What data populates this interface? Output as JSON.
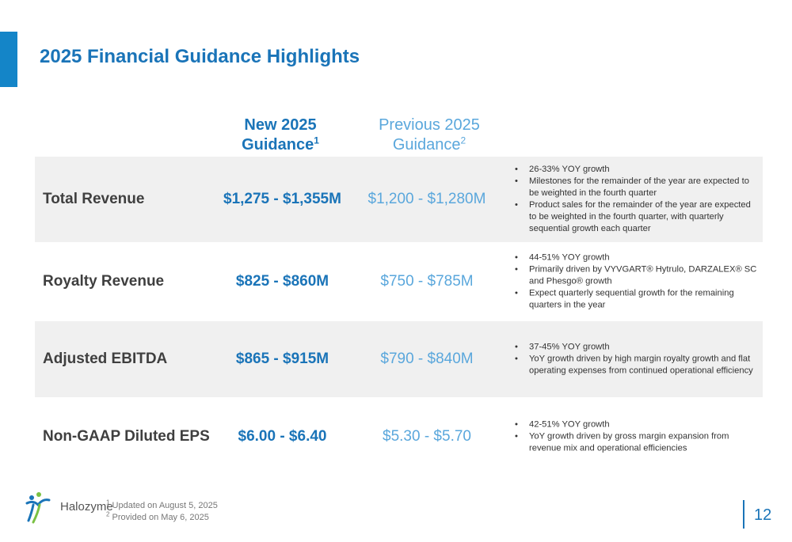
{
  "title": "2025 Financial Guidance Highlights",
  "columns": {
    "new": {
      "label": "New 2025",
      "label2": "Guidance",
      "footnote": "1"
    },
    "previous": {
      "label": "Previous 2025",
      "label2": "Guidance",
      "footnote": "2"
    }
  },
  "rows": [
    {
      "label": "Total Revenue",
      "new": "$1,275 - $1,355M",
      "previous": "$1,200 - $1,280M",
      "bullets": [
        "26-33% YOY growth",
        "Milestones for the remainder of the year are expected to be weighted in the fourth quarter",
        "Product sales for the remainder of the year are expected to be weighted in the fourth quarter, with quarterly sequential growth each quarter"
      ]
    },
    {
      "label": "Royalty Revenue",
      "new": "$825 - $860M",
      "previous": "$750 - $785M",
      "bullets": [
        "44-51% YOY growth",
        "Primarily driven by VYVGART® Hytrulo, DARZALEX® SC and Phesgo® growth",
        "Expect quarterly sequential growth for the remaining quarters in the year"
      ]
    },
    {
      "label": "Adjusted EBITDA",
      "new": "$865 - $915M",
      "previous": "$790 - $840M",
      "bullets": [
        "37-45% YOY growth",
        "YoY growth driven by high margin royalty growth and flat operating expenses from continued operational efficiency"
      ]
    },
    {
      "label": "Non-GAAP Diluted EPS",
      "new": "$6.00 - $6.40",
      "previous": "$5.30 - $5.70",
      "bullets": [
        "42-51% YOY growth",
        "YoY growth driven by gross margin expansion from revenue mix and operational efficiencies"
      ]
    }
  ],
  "footnotes": [
    {
      "mark": "1",
      "text": "Updated on August 5, 2025"
    },
    {
      "mark": "2",
      "text": "Provided on May 6, 2025"
    }
  ],
  "logo": {
    "name": "Halozyme",
    "icon": "halozyme-figure-icon",
    "colors": [
      "#1a74b8",
      "#7ac143"
    ]
  },
  "page_number": "12",
  "colors": {
    "accent": "#1485c8",
    "new_value": "#1a74b8",
    "previous_value": "#5aa7dc",
    "row_shade": "#f0f0f0"
  }
}
